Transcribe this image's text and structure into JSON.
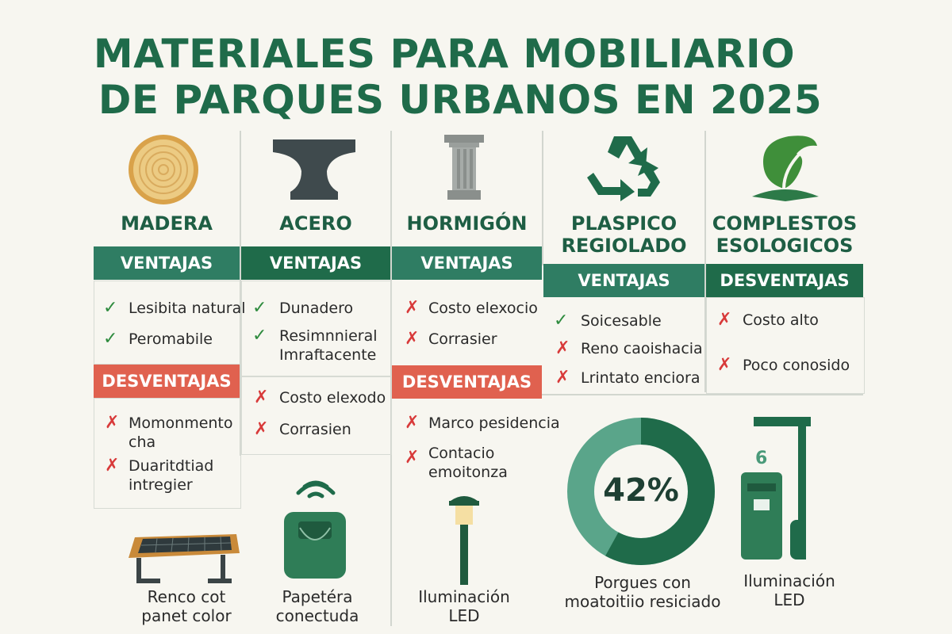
{
  "title": {
    "line1": "MATERIALES PARA MOBILIARIO",
    "line2": "DE PARQUES URBANOS EN 2025"
  },
  "columns": [
    {
      "name": "MADERA",
      "icon": "wood-log-icon",
      "ventajas_label": "VENTAJAS",
      "ventajas": [
        "Lesibita natural",
        "Peromabile"
      ],
      "desventajas_label": "DESVENTAJAS",
      "desventajas": [
        "Momonmento cha",
        "Duaritdtiad intregier"
      ]
    },
    {
      "name": "ACERO",
      "icon": "steel-beam-icon",
      "ventajas_label": "VENTAJAS",
      "ventajas": [
        "Dunadero",
        "Resimnnieral Imraftacente"
      ],
      "desventajas": [
        "Costo elexodo",
        "Corrasien"
      ]
    },
    {
      "name": "HORMIGÓN",
      "icon": "concrete-pillar-icon",
      "ventajas_label": "VENTAJAS",
      "ventajas": [
        "Costo elexocio",
        "Corrasier"
      ],
      "desventajas_label": "DESVENTAJAS",
      "desventajas": [
        "Marco pesidencia",
        "Contacio emoitonza"
      ]
    },
    {
      "name_line1": "PLASPICO",
      "name_line2": "REGIOLADO",
      "icon": "recycle-icon",
      "ventajas_label": "VENTAJAS",
      "ventajas": [
        "Soicesable",
        "Reno caoishacia",
        "Lrintato enciora"
      ]
    },
    {
      "name_line1": "COMPLESTOS",
      "name_line2": "ESOLOGICOS",
      "icon": "leaf-icon",
      "desventajas_label": "DESVENTAJAS",
      "desventajas": [
        "Costo alto",
        "Poco conosido"
      ]
    }
  ],
  "bottom": {
    "bench": {
      "icon": "solar-bench-icon",
      "line1": "Renco cot",
      "line2": "panet color"
    },
    "bin": {
      "icon": "smart-bin-icon",
      "line1": "Papetéra",
      "line2": "conectuda"
    },
    "lamp": {
      "icon": "led-lamp-icon",
      "line1": "Iluminación",
      "line2": "LED"
    },
    "donut": {
      "value": 42,
      "label": "42%",
      "line1": "Porgues con",
      "line2": "moatoitiio resiciado"
    },
    "charger": {
      "icon": "charging-station-icon",
      "digit": "6",
      "line1": "Iluminación",
      "line2": "LED"
    }
  },
  "colors": {
    "green_dark": "#1f6b4a",
    "green_band": "#2f7d63",
    "red_band": "#e0614f",
    "check": "#2e8b3e",
    "cross": "#d83a3a"
  }
}
